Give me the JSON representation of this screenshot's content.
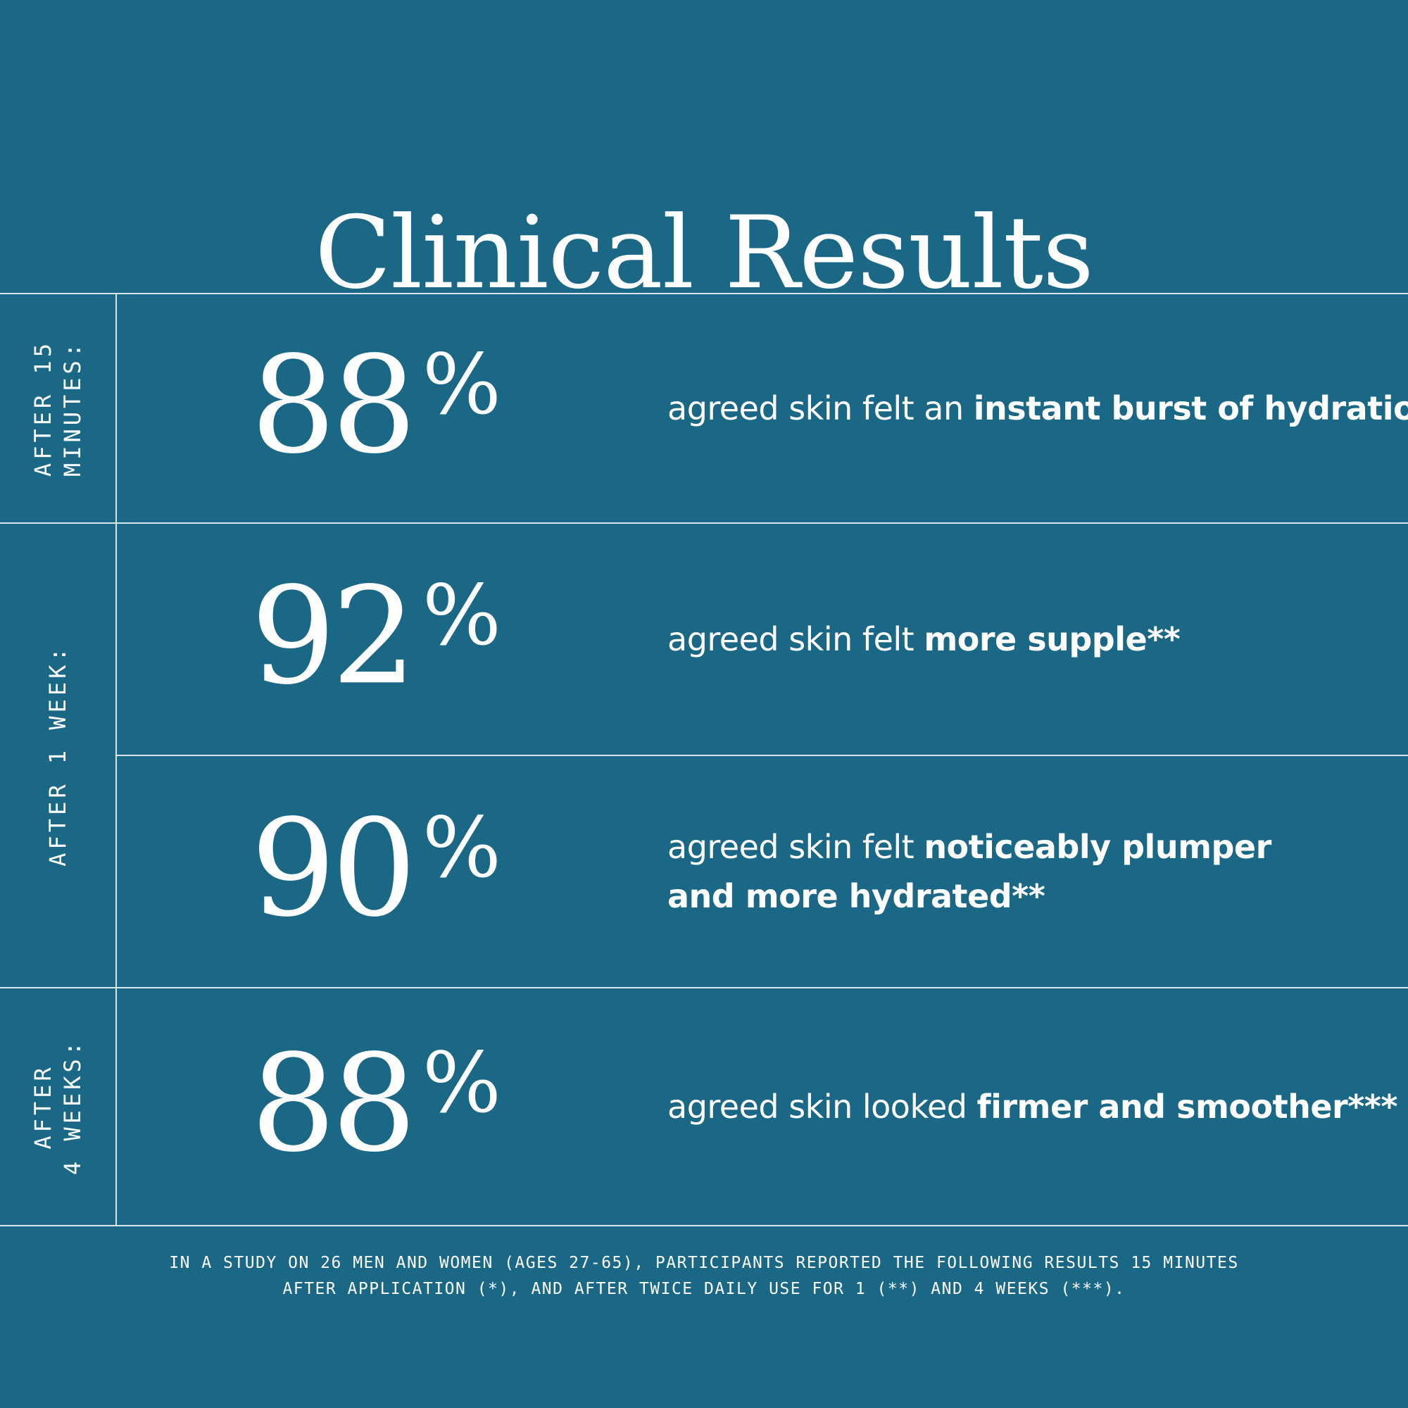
{
  "title": "Clinical Results",
  "periods": [
    {
      "line1": "AFTER 15",
      "line2": "MINUTES:"
    },
    {
      "line1": "AFTER 1 WEEK:"
    },
    {
      "line1": "AFTER",
      "line2": "4 WEEKS:"
    }
  ],
  "stats": [
    {
      "value": "88",
      "unit": "%",
      "text": "agreed skin felt an ",
      "bold": "instant burst of hydration",
      "mark": "*"
    },
    {
      "value": "92",
      "unit": "%",
      "text": "agreed skin felt ",
      "bold": "more supple",
      "mark": "**"
    },
    {
      "value": "90",
      "unit": "%",
      "text": "agreed skin felt ",
      "bold": "noticeably plumper",
      "line2_bold": "and more hydrated",
      "mark": "**"
    },
    {
      "value": "88",
      "unit": "%",
      "text": "agreed skin looked ",
      "bold": "firmer and smoother",
      "mark": "***"
    }
  ],
  "footnote": {
    "line1": "IN A STUDY ON 26 MEN AND WOMEN (AGES 27-65), PARTICIPANTS REPORTED THE FOLLOWING RESULTS 15 MINUTES",
    "line2": "AFTER APPLICATION (*), AND AFTER TWICE DAILY USE FOR 1 (**) AND 4 WEEKS (***)."
  },
  "colors": {
    "background": "#1a6886",
    "text": "#ffffff",
    "rules": "#d8e6ec"
  }
}
